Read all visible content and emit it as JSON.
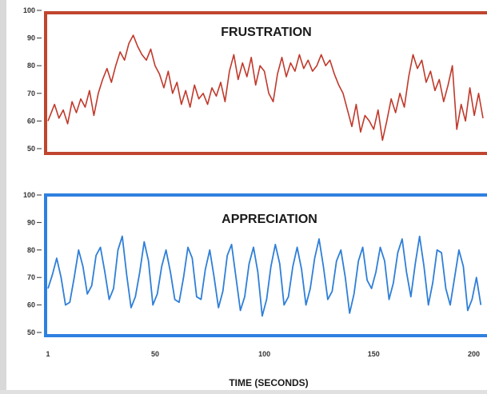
{
  "chart_data": [
    {
      "type": "line",
      "title": "FRUSTRATION",
      "color": "#c0392b",
      "border_color": "#c0452e",
      "ylim": [
        50,
        100
      ],
      "yticks": [
        "100",
        "90",
        "80",
        "70",
        "60",
        "50"
      ],
      "xlim": [
        1,
        200
      ],
      "series": [
        {
          "x": [
            1,
            4,
            6,
            8,
            10,
            12,
            14,
            16,
            18,
            20,
            22,
            24,
            26,
            28,
            30,
            32,
            34,
            36,
            38,
            40,
            42,
            44,
            46,
            48,
            50,
            52,
            54,
            56,
            58,
            60,
            62,
            64,
            66,
            68,
            70,
            72,
            74,
            76,
            78,
            80,
            82,
            84,
            86,
            88,
            90,
            92,
            94,
            96,
            98,
            100,
            102,
            104,
            106,
            108,
            110,
            112,
            114,
            116,
            118,
            120,
            122,
            124,
            126,
            128,
            130,
            132,
            134,
            136,
            138,
            140,
            142,
            144,
            146,
            148,
            150,
            152,
            154,
            156,
            158,
            160,
            162,
            164,
            166,
            168,
            170,
            172,
            174,
            176,
            178,
            180,
            182,
            184,
            186,
            188,
            190,
            192,
            194,
            196,
            198,
            200
          ],
          "values": [
            60,
            66,
            61,
            64,
            59,
            67,
            63,
            68,
            65,
            71,
            62,
            70,
            75,
            79,
            74,
            80,
            85,
            82,
            88,
            91,
            87,
            84,
            82,
            86,
            80,
            77,
            72,
            78,
            70,
            74,
            66,
            71,
            65,
            73,
            68,
            70,
            66,
            72,
            69,
            74,
            67,
            78,
            84,
            75,
            81,
            76,
            83,
            73,
            80,
            78,
            70,
            67,
            77,
            83,
            76,
            81,
            78,
            84,
            79,
            82,
            78,
            80,
            84,
            80,
            82,
            77,
            73,
            70,
            64,
            58,
            66,
            56,
            62,
            60,
            57,
            64,
            53,
            60,
            68,
            63,
            70,
            65,
            76,
            84,
            79,
            82,
            74,
            78,
            71,
            75,
            67,
            73,
            80,
            57,
            66,
            60,
            72,
            62,
            70,
            61
          ],
          "name": ""
        }
      ]
    },
    {
      "type": "line",
      "title": "APPRECIATION",
      "color": "#2f7fd8",
      "border_color": "#2f80e0",
      "ylim": [
        50,
        100
      ],
      "yticks": [
        "100",
        "90",
        "80",
        "70",
        "60",
        "50"
      ],
      "xlim": [
        1,
        200
      ],
      "xticks": [
        "1",
        "50",
        "100",
        "150",
        "200"
      ],
      "xlabel": "TIME (SECONDS)",
      "series": [
        {
          "x": [
            1,
            3,
            5,
            7,
            9,
            11,
            13,
            15,
            17,
            19,
            21,
            23,
            25,
            27,
            29,
            31,
            33,
            35,
            37,
            39,
            41,
            43,
            45,
            47,
            49,
            51,
            53,
            55,
            57,
            59,
            61,
            63,
            65,
            67,
            69,
            71,
            73,
            75,
            77,
            79,
            81,
            83,
            85,
            87,
            89,
            91,
            93,
            95,
            97,
            99,
            101,
            103,
            105,
            107,
            109,
            111,
            113,
            115,
            117,
            119,
            121,
            123,
            125,
            127,
            129,
            131,
            133,
            135,
            137,
            139,
            141,
            143,
            145,
            147,
            149,
            151,
            153,
            155,
            157,
            159,
            161,
            163,
            165,
            167,
            169,
            171,
            173,
            175,
            177,
            179,
            181,
            183,
            185,
            187,
            189,
            191,
            193,
            195,
            197,
            199
          ],
          "values": [
            66,
            71,
            77,
            70,
            60,
            61,
            70,
            80,
            74,
            64,
            67,
            78,
            81,
            72,
            62,
            66,
            80,
            85,
            71,
            59,
            63,
            72,
            83,
            76,
            60,
            64,
            74,
            80,
            72,
            62,
            61,
            70,
            81,
            77,
            63,
            62,
            73,
            80,
            70,
            59,
            65,
            78,
            82,
            70,
            58,
            63,
            75,
            81,
            72,
            56,
            62,
            74,
            82,
            75,
            60,
            63,
            74,
            81,
            73,
            60,
            66,
            77,
            84,
            74,
            62,
            65,
            76,
            80,
            70,
            57,
            64,
            76,
            81,
            69,
            66,
            72,
            81,
            76,
            62,
            68,
            79,
            84,
            72,
            63,
            75,
            85,
            74,
            60,
            68,
            80,
            79,
            66,
            60,
            70,
            80,
            74,
            58,
            62,
            70,
            60
          ],
          "name": ""
        }
      ]
    }
  ]
}
